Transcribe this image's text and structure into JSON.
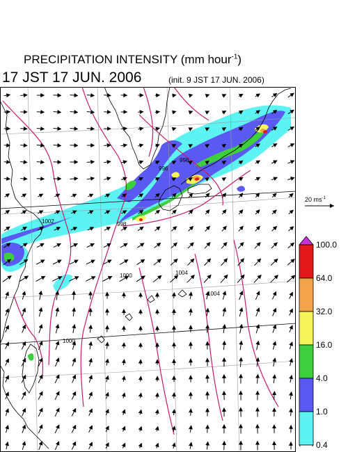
{
  "title": {
    "main": "PRECIPITATION INTENSITY (mm hour",
    "unit_exp": "-1",
    "close": ")",
    "valid_time": "17 JST 17 JUN. 2006",
    "init_time": "(init. 9 JST 17 JUN. 2006)"
  },
  "reference_vector": {
    "label": "20 ms",
    "unit_exp": "-1"
  },
  "isobar_labels": [
    "998",
    "996",
    "998",
    "1000",
    "1004",
    "1000",
    "1004",
    "1002"
  ],
  "colorbar": {
    "labels": [
      "100.0",
      "64.0",
      "32.0",
      "16.0",
      "4.0",
      "1.0",
      "0.4"
    ],
    "bins": [
      {
        "min": 0.4,
        "max": 1.0,
        "color": "#5ef3f3"
      },
      {
        "min": 1.0,
        "max": 4.0,
        "color": "#5a5af2"
      },
      {
        "min": 4.0,
        "max": 16.0,
        "color": "#3dcf3d"
      },
      {
        "min": 16.0,
        "max": 32.0,
        "color": "#f5f55a"
      },
      {
        "min": 32.0,
        "max": 64.0,
        "color": "#f3a34a"
      },
      {
        "min": 64.0,
        "max": 100.0,
        "color": "#e31818"
      },
      {
        "min": 100.0,
        "max": null,
        "color": "#c832d7"
      }
    ]
  },
  "colors": {
    "isobar": "#c81a6a",
    "coastline": "#000000",
    "gridline": "#9a9a9a"
  }
}
